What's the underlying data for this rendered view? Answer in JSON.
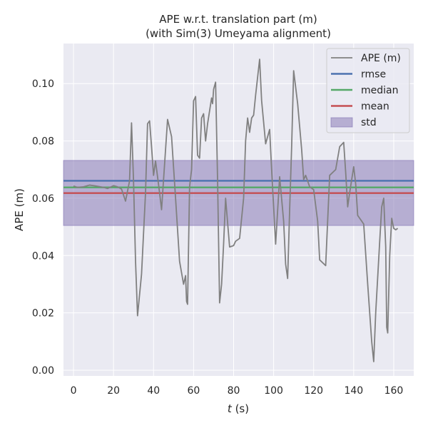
{
  "chart_data": {
    "type": "line",
    "title_line1": "APE w.r.t. translation part (m)",
    "title_line2": "(with Sim(3) Umeyama alignment)",
    "xlabel_var": "t",
    "xlabel_unit": " (s)",
    "ylabel": "APE (m)",
    "xlim": [
      -5,
      170
    ],
    "ylim": [
      -0.002,
      0.114
    ],
    "xticks": [
      0,
      20,
      40,
      60,
      80,
      100,
      120,
      140,
      160
    ],
    "yticks": [
      0.0,
      0.02,
      0.04,
      0.06,
      0.08,
      0.1
    ],
    "ytick_labels": [
      "0.00",
      "0.02",
      "0.04",
      "0.06",
      "0.08",
      "0.10"
    ],
    "grid": true,
    "legend_position": "top-right",
    "colors": {
      "background": "#eaeaf2",
      "ape": "#808080",
      "rmse": "#4c72b0",
      "median": "#55a868",
      "mean": "#c44e52",
      "std": "#8172b2"
    },
    "legend": [
      {
        "key": "ape",
        "label": "APE (m)",
        "kind": "line"
      },
      {
        "key": "rmse",
        "label": "rmse",
        "kind": "line"
      },
      {
        "key": "median",
        "label": "median",
        "kind": "line"
      },
      {
        "key": "mean",
        "label": "mean",
        "kind": "line"
      },
      {
        "key": "std",
        "label": "std",
        "kind": "patch"
      }
    ],
    "stats": {
      "rmse": 0.0661,
      "median": 0.0638,
      "mean": 0.0618,
      "std_band": [
        0.0505,
        0.0732
      ]
    },
    "series": [
      {
        "name": "APE (m)",
        "points": [
          [
            0,
            0.0643
          ],
          [
            2,
            0.0638
          ],
          [
            5,
            0.064
          ],
          [
            8,
            0.0646
          ],
          [
            11,
            0.0643
          ],
          [
            15,
            0.0638
          ],
          [
            17,
            0.0634
          ],
          [
            20,
            0.0644
          ],
          [
            22,
            0.064
          ],
          [
            24,
            0.0632
          ],
          [
            26,
            0.059
          ],
          [
            28,
            0.066
          ],
          [
            29,
            0.0863
          ],
          [
            30,
            0.066
          ],
          [
            31,
            0.038
          ],
          [
            32,
            0.019
          ],
          [
            34,
            0.0335
          ],
          [
            36,
            0.062
          ],
          [
            37,
            0.086
          ],
          [
            38,
            0.087
          ],
          [
            39,
            0.078
          ],
          [
            40,
            0.068
          ],
          [
            41,
            0.073
          ],
          [
            43,
            0.062
          ],
          [
            44,
            0.056
          ],
          [
            46,
            0.077
          ],
          [
            47,
            0.0875
          ],
          [
            49,
            0.0815
          ],
          [
            51,
            0.06
          ],
          [
            53,
            0.038
          ],
          [
            55,
            0.03
          ],
          [
            56,
            0.033
          ],
          [
            56.5,
            0.024
          ],
          [
            57,
            0.023
          ],
          [
            58,
            0.064
          ],
          [
            59,
            0.07
          ],
          [
            60,
            0.094
          ],
          [
            61,
            0.0955
          ],
          [
            62,
            0.075
          ],
          [
            63,
            0.074
          ],
          [
            64,
            0.088
          ],
          [
            65,
            0.0895
          ],
          [
            66,
            0.08
          ],
          [
            67,
            0.086
          ],
          [
            69,
            0.095
          ],
          [
            69.5,
            0.093
          ],
          [
            70,
            0.098
          ],
          [
            71,
            0.1005
          ],
          [
            72,
            0.066
          ],
          [
            73,
            0.0235
          ],
          [
            74,
            0.03
          ],
          [
            75,
            0.044
          ],
          [
            76,
            0.06
          ],
          [
            78,
            0.043
          ],
          [
            80,
            0.0435
          ],
          [
            81,
            0.045
          ],
          [
            83,
            0.046
          ],
          [
            85,
            0.06
          ],
          [
            86,
            0.08
          ],
          [
            87,
            0.088
          ],
          [
            88,
            0.083
          ],
          [
            89,
            0.088
          ],
          [
            90,
            0.089
          ],
          [
            91,
            0.096
          ],
          [
            93,
            0.1085
          ],
          [
            94,
            0.094
          ],
          [
            96,
            0.079
          ],
          [
            98,
            0.084
          ],
          [
            99,
            0.07
          ],
          [
            101,
            0.044
          ],
          [
            103,
            0.0675
          ],
          [
            105,
            0.052
          ],
          [
            106,
            0.037
          ],
          [
            107,
            0.032
          ],
          [
            108,
            0.056
          ],
          [
            109,
            0.078
          ],
          [
            110,
            0.1045
          ],
          [
            112,
            0.093
          ],
          [
            114,
            0.077
          ],
          [
            115,
            0.0665
          ],
          [
            116,
            0.068
          ],
          [
            118,
            0.064
          ],
          [
            120,
            0.063
          ],
          [
            122,
            0.052
          ],
          [
            123,
            0.0385
          ],
          [
            126,
            0.0365
          ],
          [
            128,
            0.068
          ],
          [
            131,
            0.07
          ],
          [
            133,
            0.078
          ],
          [
            135,
            0.0795
          ],
          [
            136,
            0.069
          ],
          [
            137,
            0.057
          ],
          [
            138,
            0.062
          ],
          [
            140,
            0.071
          ],
          [
            141,
            0.065
          ],
          [
            142,
            0.054
          ],
          [
            145,
            0.051
          ],
          [
            147,
            0.03
          ],
          [
            149,
            0.01
          ],
          [
            150,
            0.003
          ],
          [
            151,
            0.02
          ],
          [
            153,
            0.045
          ],
          [
            154,
            0.057
          ],
          [
            155,
            0.06
          ],
          [
            156,
            0.043
          ],
          [
            156.5,
            0.015
          ],
          [
            157,
            0.013
          ],
          [
            158,
            0.04
          ],
          [
            159,
            0.053
          ],
          [
            160,
            0.0495
          ],
          [
            161,
            0.049
          ],
          [
            162,
            0.0495
          ]
        ]
      }
    ]
  }
}
